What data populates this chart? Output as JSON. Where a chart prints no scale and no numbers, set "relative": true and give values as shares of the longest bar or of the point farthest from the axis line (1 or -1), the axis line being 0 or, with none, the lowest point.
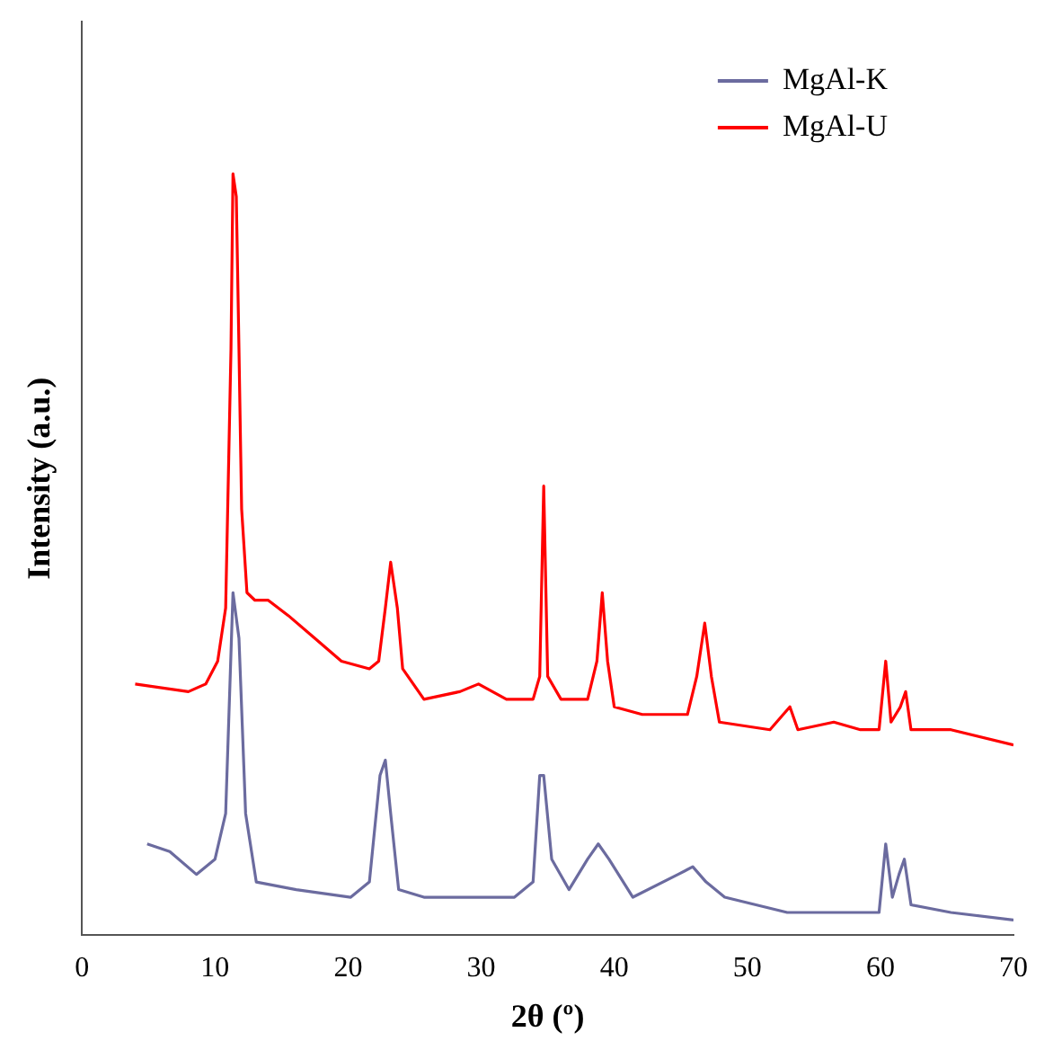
{
  "chart_data": {
    "type": "line",
    "xlabel": "2θ (º)",
    "ylabel": "Intensity (a.u.)",
    "relative": true,
    "xlim": [
      0,
      70
    ],
    "xticks": [
      0,
      10,
      20,
      30,
      40,
      50,
      60,
      70
    ],
    "grid": false,
    "legend": "top right",
    "marker": "none",
    "line_style": "solid",
    "series": [
      {
        "name": "MgAl-K",
        "color": "#6b6b9f",
        "x": [
          4.9,
          6.6,
          8.6,
          10,
          10.8,
          11.35,
          11.8,
          12.3,
          13.1,
          16.1,
          20.2,
          21.6,
          22.4,
          22.8,
          23.2,
          23.8,
          25.7,
          29.1,
          32.5,
          33.9,
          34.4,
          34.7,
          35.3,
          36.6,
          38,
          38.8,
          39.6,
          41.4,
          44.8,
          45.9,
          46.9,
          48.3,
          53,
          58.5,
          59.9,
          60.4,
          60.9,
          61.4,
          61.8,
          62.3,
          65.3,
          70
        ],
        "values": [
          0.12,
          0.11,
          0.08,
          0.1,
          0.16,
          0.45,
          0.39,
          0.16,
          0.07,
          0.06,
          0.05,
          0.07,
          0.21,
          0.23,
          0.16,
          0.06,
          0.05,
          0.05,
          0.05,
          0.07,
          0.21,
          0.21,
          0.1,
          0.06,
          0.1,
          0.12,
          0.1,
          0.05,
          0.08,
          0.09,
          0.07,
          0.05,
          0.03,
          0.03,
          0.03,
          0.12,
          0.05,
          0.08,
          0.1,
          0.04,
          0.03,
          0.02
        ]
      },
      {
        "name": "MgAl-U",
        "color": "#ff0000",
        "x": [
          4,
          8,
          9.3,
          10.2,
          10.8,
          11.2,
          11.35,
          11.6,
          11.8,
          12,
          12.4,
          13,
          14,
          15.5,
          17.5,
          19.5,
          21.6,
          22.3,
          22.8,
          23.2,
          23.7,
          24.1,
          25.7,
          28.4,
          29.8,
          31.9,
          33.9,
          34.4,
          34.7,
          35,
          36,
          38,
          38.7,
          39.1,
          39.5,
          40,
          42.1,
          45.5,
          46.2,
          46.8,
          47.3,
          47.9,
          51.7,
          53.2,
          53.8,
          56.5,
          58.5,
          59.9,
          60.4,
          60.8,
          61.5,
          61.9,
          62.3,
          65.3,
          70
        ],
        "values": [
          0.33,
          0.32,
          0.33,
          0.36,
          0.43,
          0.77,
          1,
          0.97,
          0.77,
          0.56,
          0.45,
          0.44,
          0.44,
          0.42,
          0.39,
          0.36,
          0.35,
          0.36,
          0.43,
          0.49,
          0.43,
          0.35,
          0.31,
          0.32,
          0.33,
          0.31,
          0.31,
          0.34,
          0.59,
          0.34,
          0.31,
          0.31,
          0.36,
          0.45,
          0.36,
          0.3,
          0.29,
          0.29,
          0.34,
          0.41,
          0.34,
          0.28,
          0.27,
          0.3,
          0.27,
          0.28,
          0.27,
          0.27,
          0.36,
          0.28,
          0.3,
          0.32,
          0.27,
          0.27,
          0.25
        ]
      }
    ]
  }
}
